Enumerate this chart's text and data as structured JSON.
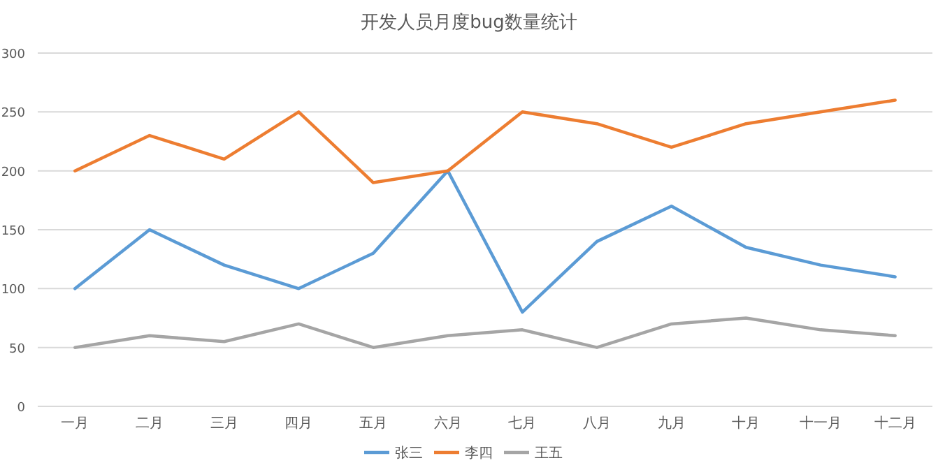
{
  "chart_data": {
    "type": "line",
    "title": "开发人员月度bug数量统计",
    "categories": [
      "一月",
      "二月",
      "三月",
      "四月",
      "五月",
      "六月",
      "七月",
      "八月",
      "九月",
      "十月",
      "十一月",
      "十二月"
    ],
    "series": [
      {
        "name": "张三",
        "color": "#5b9bd5",
        "values": [
          100,
          150,
          120,
          100,
          130,
          200,
          80,
          140,
          170,
          135,
          120,
          110
        ]
      },
      {
        "name": "李四",
        "color": "#ed7d31",
        "values": [
          200,
          230,
          210,
          250,
          190,
          200,
          250,
          240,
          220,
          240,
          250,
          260
        ]
      },
      {
        "name": "王五",
        "color": "#a5a5a5",
        "values": [
          50,
          60,
          55,
          70,
          50,
          60,
          65,
          50,
          70,
          75,
          65,
          60
        ]
      }
    ],
    "ylim": [
      0,
      300
    ],
    "yticks": [
      0,
      50,
      100,
      150,
      200,
      250,
      300
    ],
    "grid": "y",
    "legend": "bottom",
    "marker": "none",
    "line_style": "solid"
  }
}
